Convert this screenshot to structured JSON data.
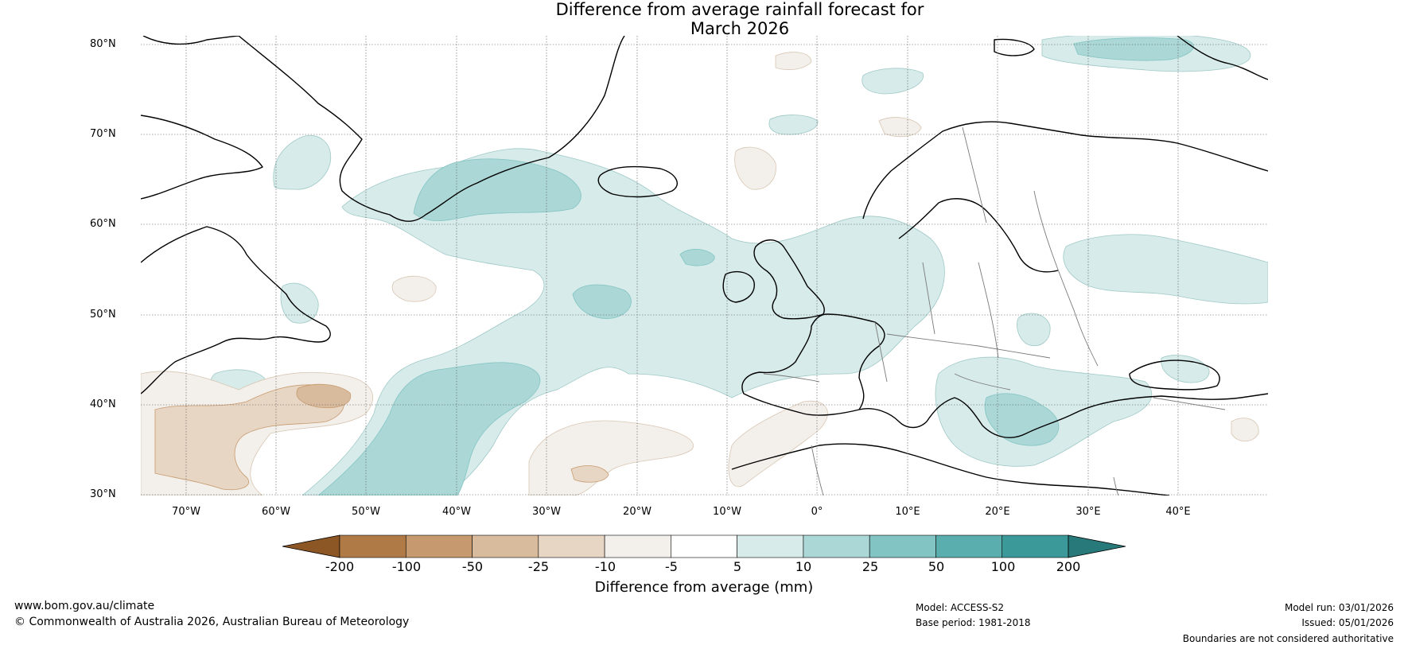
{
  "title_line1": "Difference from average rainfall forecast for",
  "title_line2": "March 2026",
  "latitudes": [
    "80°N",
    "70°N",
    "60°N",
    "50°N",
    "40°N",
    "30°N"
  ],
  "longitudes": [
    "70°W",
    "60°W",
    "50°W",
    "40°W",
    "30°W",
    "20°W",
    "10°W",
    "0°",
    "10°E",
    "20°E",
    "30°E",
    "40°E"
  ],
  "colorbar": {
    "ticks": [
      "-200",
      "-100",
      "-50",
      "-25",
      "-10",
      "-5",
      "5",
      "10",
      "25",
      "50",
      "100",
      "200"
    ],
    "colors": [
      "#8c5725",
      "#b07a47",
      "#c69a6e",
      "#d8bb9d",
      "#e8d6c5",
      "#f3efea",
      "#ffffff",
      "#d6ebea",
      "#abd7d6",
      "#82c4c3",
      "#5aaead",
      "#3b9a99",
      "#287a7a"
    ],
    "label": "Difference from average (mm)"
  },
  "footer": {
    "url": "www.bom.gov.au/climate",
    "copyright": "© Commonwealth of Australia 2026, Australian Bureau of Meteorology",
    "model": "Model: ACCESS-S2",
    "base_period": "Base period: 1981-2018",
    "model_run": "Model run: 03/01/2026",
    "issued": "Issued: 05/01/2026",
    "disclaimer": "Boundaries are not considered authoritative"
  }
}
